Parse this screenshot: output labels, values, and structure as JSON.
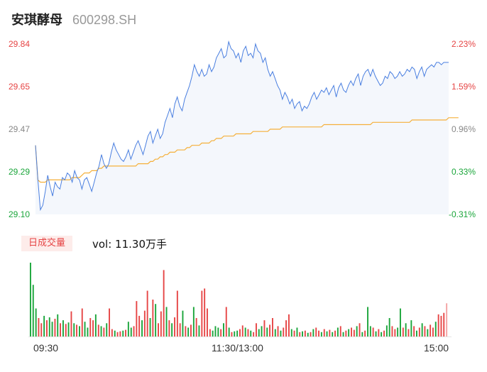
{
  "header": {
    "name": "安琪酵母",
    "code": "600298.SH"
  },
  "price_axis": {
    "prices": [
      "29.84",
      "29.65",
      "29.47",
      "29.29",
      "29.10"
    ],
    "percents": [
      "2.23%",
      "1.59%",
      "0.96%",
      "0.33%",
      "-0.31%"
    ]
  },
  "volume": {
    "tag": "日成交量",
    "summary": "vol: 11.30万手"
  },
  "time_axis": [
    "09:30",
    "11:30/13:00",
    "15:00"
  ],
  "colors": {
    "price_line": "#4a7fe0",
    "avg_line": "#f5b03a",
    "up": "#e64545",
    "down": "#1aa53a",
    "area": "#f4f7fc"
  },
  "chart_data": {
    "type": "line",
    "ylim": [
      29.1,
      29.84
    ],
    "series": [
      {
        "values": [
          29.4,
          29.25,
          29.12,
          29.14,
          29.2,
          29.27,
          29.22,
          29.18,
          29.24,
          29.22,
          29.21,
          29.26,
          29.25,
          29.28,
          29.27,
          29.24,
          29.29,
          29.26,
          29.25,
          29.21,
          29.25,
          29.26,
          29.23,
          29.2,
          29.24,
          29.28,
          29.31,
          29.36,
          29.32,
          29.3,
          29.32,
          29.37,
          29.41,
          29.38,
          29.36,
          29.34,
          29.33,
          29.35,
          29.38,
          29.34,
          29.37,
          29.4,
          29.42,
          29.39,
          29.36,
          29.4,
          29.44,
          29.46,
          29.41,
          29.44,
          29.47,
          29.43,
          29.45,
          29.5,
          29.53,
          29.56,
          29.52,
          29.58,
          29.61,
          29.57,
          29.55,
          29.6,
          29.63,
          29.66,
          29.7,
          29.75,
          29.72,
          29.7,
          29.73,
          29.7,
          29.71,
          29.75,
          29.72,
          29.74,
          29.78,
          29.8,
          29.82,
          29.78,
          29.79,
          29.85,
          29.82,
          29.81,
          29.78,
          29.8,
          29.76,
          29.81,
          29.83,
          29.79,
          29.8,
          29.78,
          29.84,
          29.81,
          29.8,
          29.76,
          29.78,
          29.73,
          29.7,
          29.72,
          29.69,
          29.66,
          29.64,
          29.6,
          29.63,
          29.61,
          29.58,
          29.6,
          29.56,
          29.58,
          29.59,
          29.55,
          29.57,
          29.56,
          29.58,
          29.61,
          29.63,
          29.6,
          29.62,
          29.64,
          29.63,
          29.65,
          29.62,
          29.64,
          29.66,
          29.61,
          29.65,
          29.67,
          29.64,
          29.63,
          29.66,
          29.68,
          29.66,
          29.69,
          29.71,
          29.66,
          29.7,
          29.72,
          29.73,
          29.7,
          29.73,
          29.7,
          29.68,
          29.66,
          29.67,
          29.7,
          29.69,
          29.72,
          29.71,
          29.69,
          29.7,
          29.72,
          29.7,
          29.71,
          29.73,
          29.72,
          29.74,
          29.73,
          29.69,
          29.72,
          29.74,
          29.7,
          29.73,
          29.74,
          29.75,
          29.74,
          29.76,
          29.76,
          29.75,
          29.76,
          29.76,
          29.76
        ]
      },
      {
        "values": [
          29.4,
          29.25,
          29.24,
          29.24,
          29.24,
          29.25,
          29.25,
          29.25,
          29.25,
          29.25,
          29.25,
          29.25,
          29.25,
          29.25,
          29.25,
          29.26,
          29.26,
          29.26,
          29.26,
          29.27,
          29.28,
          29.28,
          29.28,
          29.29,
          29.29,
          29.29,
          29.3,
          29.3,
          29.31,
          29.31,
          29.31,
          29.31,
          29.31,
          29.31,
          29.31,
          29.31,
          29.31,
          29.31,
          29.31,
          29.31,
          29.31,
          29.31,
          29.32,
          29.32,
          29.32,
          29.32,
          29.32,
          29.33,
          29.33,
          29.34,
          29.34,
          29.35,
          29.35,
          29.36,
          29.36,
          29.37,
          29.37,
          29.37,
          29.38,
          29.38,
          29.38,
          29.38,
          29.39,
          29.39,
          29.4,
          29.4,
          29.4,
          29.4,
          29.41,
          29.41,
          29.41,
          29.41,
          29.42,
          29.42,
          29.43,
          29.43,
          29.43,
          29.44,
          29.44,
          29.44,
          29.44,
          29.44,
          29.45,
          29.45,
          29.45,
          29.45,
          29.45,
          29.45,
          29.45,
          29.46,
          29.46,
          29.46,
          29.46,
          29.46,
          29.46,
          29.46,
          29.47,
          29.47,
          29.47,
          29.47,
          29.47,
          29.48,
          29.48,
          29.48,
          29.48,
          29.48,
          29.48,
          29.48,
          29.48,
          29.48,
          29.48,
          29.48,
          29.48,
          29.48,
          29.48,
          29.48,
          29.48,
          29.48,
          29.49,
          29.49,
          29.49,
          29.49,
          29.49,
          29.49,
          29.49,
          29.49,
          29.49,
          29.49,
          29.49,
          29.49,
          29.49,
          29.49,
          29.49,
          29.49,
          29.49,
          29.49,
          29.49,
          29.49,
          29.5,
          29.5,
          29.5,
          29.5,
          29.5,
          29.5,
          29.5,
          29.5,
          29.5,
          29.5,
          29.5,
          29.5,
          29.5,
          29.5,
          29.5,
          29.5,
          29.51,
          29.51,
          29.51,
          29.51,
          29.51,
          29.51,
          29.51,
          29.51,
          29.51,
          29.51,
          29.51,
          29.51,
          29.51,
          29.51,
          29.51,
          29.52,
          29.52,
          29.52,
          29.52,
          29.52
        ]
      }
    ],
    "volume_bars": [
      {
        "v": 100,
        "d": "down"
      },
      {
        "v": 70,
        "d": "down"
      },
      {
        "v": 38,
        "d": "down"
      },
      {
        "v": 25,
        "d": "up"
      },
      {
        "v": 18,
        "d": "up"
      },
      {
        "v": 28,
        "d": "down"
      },
      {
        "v": 22,
        "d": "up"
      },
      {
        "v": 26,
        "d": "down"
      },
      {
        "v": 20,
        "d": "down"
      },
      {
        "v": 24,
        "d": "up"
      },
      {
        "v": 30,
        "d": "down"
      },
      {
        "v": 18,
        "d": "up"
      },
      {
        "v": 22,
        "d": "down"
      },
      {
        "v": 17,
        "d": "up"
      },
      {
        "v": 19,
        "d": "down"
      },
      {
        "v": 34,
        "d": "up"
      },
      {
        "v": 18,
        "d": "down"
      },
      {
        "v": 16,
        "d": "up"
      },
      {
        "v": 14,
        "d": "down"
      },
      {
        "v": 38,
        "d": "up"
      },
      {
        "v": 20,
        "d": "down"
      },
      {
        "v": 12,
        "d": "down"
      },
      {
        "v": 25,
        "d": "up"
      },
      {
        "v": 22,
        "d": "up"
      },
      {
        "v": 30,
        "d": "down"
      },
      {
        "v": 16,
        "d": "up"
      },
      {
        "v": 14,
        "d": "down"
      },
      {
        "v": 12,
        "d": "up"
      },
      {
        "v": 18,
        "d": "down"
      },
      {
        "v": 38,
        "d": "up"
      },
      {
        "v": 10,
        "d": "up"
      },
      {
        "v": 8,
        "d": "down"
      },
      {
        "v": 6,
        "d": "up"
      },
      {
        "v": 7,
        "d": "up"
      },
      {
        "v": 8,
        "d": "down"
      },
      {
        "v": 9,
        "d": "up"
      },
      {
        "v": 20,
        "d": "down"
      },
      {
        "v": 12,
        "d": "down"
      },
      {
        "v": 14,
        "d": "up"
      },
      {
        "v": 48,
        "d": "up"
      },
      {
        "v": 28,
        "d": "up"
      },
      {
        "v": 22,
        "d": "down"
      },
      {
        "v": 35,
        "d": "up"
      },
      {
        "v": 62,
        "d": "up"
      },
      {
        "v": 25,
        "d": "down"
      },
      {
        "v": 50,
        "d": "up"
      },
      {
        "v": 44,
        "d": "down"
      },
      {
        "v": 18,
        "d": "up"
      },
      {
        "v": 34,
        "d": "up"
      },
      {
        "v": 90,
        "d": "up"
      },
      {
        "v": 40,
        "d": "down"
      },
      {
        "v": 22,
        "d": "up"
      },
      {
        "v": 18,
        "d": "down"
      },
      {
        "v": 26,
        "d": "up"
      },
      {
        "v": 62,
        "d": "up"
      },
      {
        "v": 18,
        "d": "up"
      },
      {
        "v": 35,
        "d": "down"
      },
      {
        "v": 14,
        "d": "up"
      },
      {
        "v": 12,
        "d": "down"
      },
      {
        "v": 16,
        "d": "up"
      },
      {
        "v": 40,
        "d": "down"
      },
      {
        "v": 25,
        "d": "up"
      },
      {
        "v": 15,
        "d": "down"
      },
      {
        "v": 62,
        "d": "up"
      },
      {
        "v": 65,
        "d": "up"
      },
      {
        "v": 38,
        "d": "up"
      },
      {
        "v": 10,
        "d": "up"
      },
      {
        "v": 8,
        "d": "down"
      },
      {
        "v": 14,
        "d": "down"
      },
      {
        "v": 12,
        "d": "down"
      },
      {
        "v": 10,
        "d": "up"
      },
      {
        "v": 18,
        "d": "down"
      },
      {
        "v": 40,
        "d": "up"
      },
      {
        "v": 12,
        "d": "down"
      },
      {
        "v": 6,
        "d": "up"
      },
      {
        "v": 7,
        "d": "down"
      },
      {
        "v": 8,
        "d": "down"
      },
      {
        "v": 10,
        "d": "up"
      },
      {
        "v": 15,
        "d": "up"
      },
      {
        "v": 12,
        "d": "down"
      },
      {
        "v": 10,
        "d": "up"
      },
      {
        "v": 8,
        "d": "down"
      },
      {
        "v": 6,
        "d": "up"
      },
      {
        "v": 18,
        "d": "up"
      },
      {
        "v": 10,
        "d": "down"
      },
      {
        "v": 14,
        "d": "down"
      },
      {
        "v": 22,
        "d": "up"
      },
      {
        "v": 12,
        "d": "down"
      },
      {
        "v": 16,
        "d": "up"
      },
      {
        "v": 25,
        "d": "up"
      },
      {
        "v": 10,
        "d": "down"
      },
      {
        "v": 14,
        "d": "up"
      },
      {
        "v": 8,
        "d": "down"
      },
      {
        "v": 12,
        "d": "up"
      },
      {
        "v": 22,
        "d": "up"
      },
      {
        "v": 30,
        "d": "up"
      },
      {
        "v": 10,
        "d": "down"
      },
      {
        "v": 8,
        "d": "up"
      },
      {
        "v": 12,
        "d": "down"
      },
      {
        "v": 6,
        "d": "up"
      },
      {
        "v": 7,
        "d": "down"
      },
      {
        "v": 8,
        "d": "up"
      },
      {
        "v": 5,
        "d": "down"
      },
      {
        "v": 6,
        "d": "up"
      },
      {
        "v": 10,
        "d": "down"
      },
      {
        "v": 12,
        "d": "up"
      },
      {
        "v": 8,
        "d": "up"
      },
      {
        "v": 6,
        "d": "down"
      },
      {
        "v": 10,
        "d": "up"
      },
      {
        "v": 7,
        "d": "down"
      },
      {
        "v": 9,
        "d": "up"
      },
      {
        "v": 6,
        "d": "down"
      },
      {
        "v": 8,
        "d": "up"
      },
      {
        "v": 12,
        "d": "down"
      },
      {
        "v": 14,
        "d": "up"
      },
      {
        "v": 6,
        "d": "down"
      },
      {
        "v": 8,
        "d": "up"
      },
      {
        "v": 10,
        "d": "down"
      },
      {
        "v": 12,
        "d": "up"
      },
      {
        "v": 9,
        "d": "up"
      },
      {
        "v": 14,
        "d": "down"
      },
      {
        "v": 18,
        "d": "up"
      },
      {
        "v": 6,
        "d": "down"
      },
      {
        "v": 8,
        "d": "up"
      },
      {
        "v": 40,
        "d": "down"
      },
      {
        "v": 14,
        "d": "down"
      },
      {
        "v": 12,
        "d": "up"
      },
      {
        "v": 7,
        "d": "down"
      },
      {
        "v": 10,
        "d": "up"
      },
      {
        "v": 6,
        "d": "down"
      },
      {
        "v": 8,
        "d": "up"
      },
      {
        "v": 15,
        "d": "down"
      },
      {
        "v": 25,
        "d": "down"
      },
      {
        "v": 14,
        "d": "up"
      },
      {
        "v": 10,
        "d": "up"
      },
      {
        "v": 12,
        "d": "down"
      },
      {
        "v": 38,
        "d": "down"
      },
      {
        "v": 12,
        "d": "up"
      },
      {
        "v": 18,
        "d": "down"
      },
      {
        "v": 10,
        "d": "up"
      },
      {
        "v": 22,
        "d": "down"
      },
      {
        "v": 14,
        "d": "up"
      },
      {
        "v": 8,
        "d": "down"
      },
      {
        "v": 12,
        "d": "up"
      },
      {
        "v": 18,
        "d": "down"
      },
      {
        "v": 14,
        "d": "up"
      },
      {
        "v": 10,
        "d": "down"
      },
      {
        "v": 16,
        "d": "up"
      },
      {
        "v": 12,
        "d": "up"
      },
      {
        "v": 20,
        "d": "down"
      },
      {
        "v": 30,
        "d": "up"
      },
      {
        "v": 28,
        "d": "up"
      },
      {
        "v": 32,
        "d": "up"
      },
      {
        "v": 45,
        "d": "faded"
      }
    ]
  }
}
